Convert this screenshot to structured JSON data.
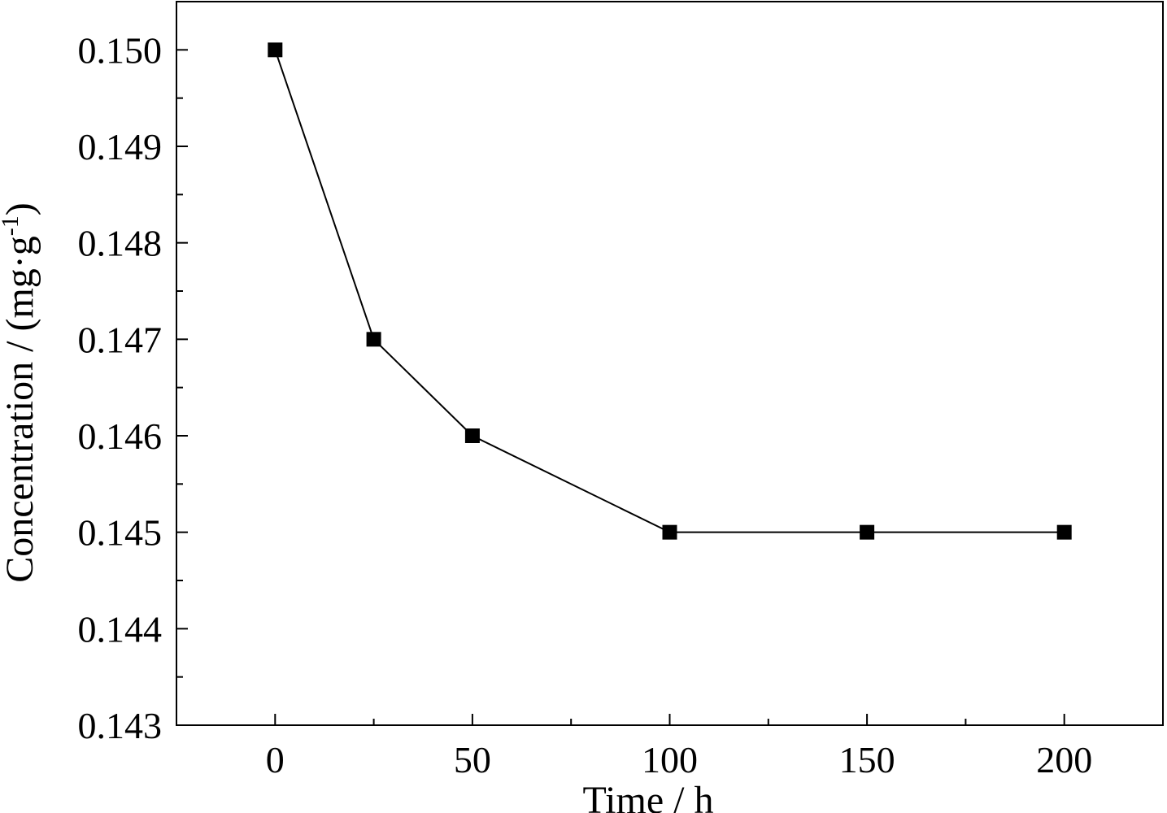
{
  "chart_data": {
    "type": "line",
    "title": "",
    "xlabel": "Time / h",
    "ylabel": {
      "main": "Concentration / (mg·g",
      "sup": "-1",
      "close": ")"
    },
    "xlim": [
      -25,
      225
    ],
    "ylim": [
      0.143,
      0.1505
    ],
    "x_ticks": [
      0,
      50,
      100,
      150,
      200
    ],
    "x_tick_labels": [
      "0",
      "50",
      "100",
      "150",
      "200"
    ],
    "x_minor_ticks": [
      25,
      75,
      125,
      175
    ],
    "y_ticks": [
      0.143,
      0.144,
      0.145,
      0.146,
      0.147,
      0.148,
      0.149,
      0.15
    ],
    "y_tick_labels": [
      "0.143",
      "0.144",
      "0.145",
      "0.146",
      "0.147",
      "0.148",
      "0.149",
      "0.150"
    ],
    "y_minor_ticks": [
      0.1435,
      0.1445,
      0.1455,
      0.1465,
      0.1475,
      0.1485,
      0.1495,
      0.1505
    ],
    "grid": false,
    "series": [
      {
        "marker": "square",
        "color": "#000000",
        "x": [
          0,
          25,
          50,
          100,
          150,
          200
        ],
        "y": [
          0.15,
          0.147,
          0.146,
          0.145,
          0.145,
          0.145
        ]
      }
    ]
  }
}
